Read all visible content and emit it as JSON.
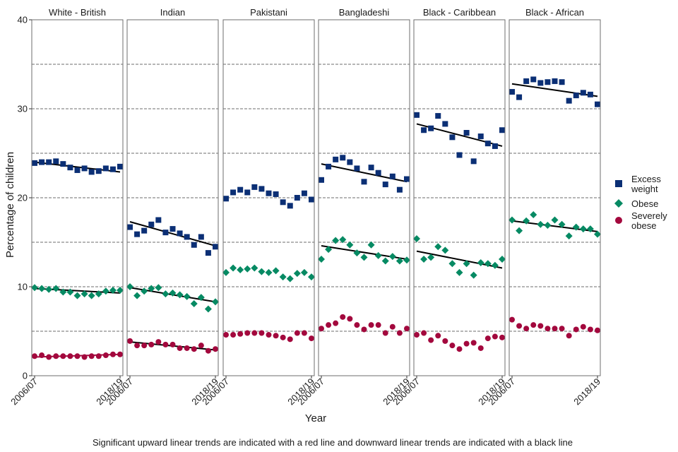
{
  "chart_data": {
    "type": "scatter",
    "xlabel": "Year",
    "ylabel": "Percentage of children",
    "caption": "Significant upward linear trends are indicated with a red line and downward linear trends are indicated with a black line",
    "x": [
      "2006/07",
      "2007/08",
      "2008/09",
      "2009/10",
      "2010/11",
      "2011/12",
      "2012/13",
      "2013/14",
      "2014/15",
      "2015/16",
      "2016/17",
      "2017/18",
      "2018/19"
    ],
    "x_tick_labels": [
      "2006/07",
      "2018/19"
    ],
    "ylim": [
      0,
      40
    ],
    "y_ticks": [
      0,
      10,
      20,
      30,
      40
    ],
    "grid": "horizontal dashed",
    "legend_position": "right",
    "legend": [
      {
        "key": "excess",
        "line1": "Excess",
        "line2": "weight",
        "color": "#0b2f75",
        "shape": "square"
      },
      {
        "key": "obese",
        "line1": "Obese",
        "line2": "",
        "color": "#068a63",
        "shape": "diamond"
      },
      {
        "key": "severe",
        "line1": "Severely",
        "line2": "obese",
        "color": "#a3083d",
        "shape": "circle"
      }
    ],
    "panels": [
      {
        "name": "White - British",
        "excess": [
          23.9,
          24.0,
          24.0,
          24.1,
          23.8,
          23.4,
          23.1,
          23.3,
          22.9,
          23.0,
          23.3,
          23.2,
          23.5
        ],
        "obese": [
          9.9,
          9.8,
          9.7,
          9.8,
          9.4,
          9.4,
          9.0,
          9.2,
          9.0,
          9.2,
          9.5,
          9.6,
          9.6
        ],
        "severe": [
          2.2,
          2.3,
          2.1,
          2.2,
          2.2,
          2.2,
          2.2,
          2.1,
          2.2,
          2.2,
          2.3,
          2.4,
          2.4
        ],
        "trends": [
          {
            "series": "excess",
            "start": 24.0,
            "end": 22.9,
            "color": "#000000"
          },
          {
            "series": "obese",
            "start": 9.8,
            "end": 9.3,
            "color": "#000000"
          },
          {
            "series": "severe",
            "start": 2.1,
            "end": 2.4,
            "color": "#a3083d"
          }
        ]
      },
      {
        "name": "Indian",
        "excess": [
          16.7,
          15.9,
          16.3,
          17.0,
          17.5,
          16.1,
          16.5,
          16.0,
          15.6,
          14.7,
          15.6,
          13.8,
          14.5
        ],
        "obese": [
          10.0,
          9.0,
          9.5,
          9.8,
          9.9,
          9.2,
          9.3,
          9.1,
          8.9,
          8.1,
          8.8,
          7.5,
          8.3
        ],
        "severe": [
          3.9,
          3.4,
          3.4,
          3.5,
          3.8,
          3.5,
          3.5,
          3.1,
          3.1,
          3.0,
          3.4,
          2.8,
          3.0
        ],
        "trends": [
          {
            "series": "excess",
            "start": 17.3,
            "end": 14.6,
            "color": "#000000"
          },
          {
            "series": "obese",
            "start": 9.9,
            "end": 8.3,
            "color": "#000000"
          },
          {
            "series": "severe",
            "start": 3.8,
            "end": 2.9,
            "color": "#000000"
          }
        ]
      },
      {
        "name": "Pakistani",
        "excess": [
          19.9,
          20.6,
          20.9,
          20.6,
          21.2,
          21.0,
          20.5,
          20.4,
          19.5,
          19.1,
          20.0,
          20.5,
          19.8
        ],
        "obese": [
          11.6,
          12.1,
          11.9,
          12.0,
          12.1,
          11.7,
          11.6,
          11.8,
          11.1,
          10.9,
          11.5,
          11.6,
          11.1
        ],
        "severe": [
          4.6,
          4.6,
          4.7,
          4.8,
          4.8,
          4.8,
          4.6,
          4.5,
          4.3,
          4.1,
          4.8,
          4.8,
          4.2
        ],
        "trends": []
      },
      {
        "name": "Bangladeshi",
        "excess": [
          22.0,
          23.5,
          24.3,
          24.5,
          24.0,
          23.3,
          21.8,
          23.4,
          22.8,
          21.5,
          22.4,
          20.9,
          22.1
        ],
        "obese": [
          13.1,
          14.2,
          15.2,
          15.3,
          14.7,
          13.8,
          13.3,
          14.7,
          13.5,
          12.9,
          13.4,
          12.9,
          13.0
        ],
        "severe": [
          5.3,
          5.7,
          5.9,
          6.6,
          6.4,
          5.7,
          5.2,
          5.7,
          5.7,
          4.8,
          5.5,
          4.8,
          5.3
        ],
        "trends": [
          {
            "series": "excess",
            "start": 23.8,
            "end": 21.8,
            "color": "#000000"
          },
          {
            "series": "obese",
            "start": 14.6,
            "end": 13.1,
            "color": "#000000"
          }
        ]
      },
      {
        "name": "Black - Caribbean",
        "excess": [
          29.3,
          27.6,
          27.8,
          29.2,
          28.3,
          26.8,
          24.8,
          27.3,
          24.1,
          26.9,
          26.1,
          25.8,
          27.6
        ],
        "obese": [
          15.4,
          13.1,
          13.3,
          14.5,
          14.1,
          12.6,
          11.6,
          12.6,
          11.3,
          12.7,
          12.6,
          12.4,
          13.1
        ],
        "severe": [
          4.6,
          4.8,
          4.0,
          4.5,
          3.9,
          3.4,
          3.0,
          3.6,
          3.7,
          3.1,
          4.2,
          4.4,
          4.3
        ],
        "trends": [
          {
            "series": "excess",
            "start": 28.3,
            "end": 25.8,
            "color": "#000000"
          },
          {
            "series": "obese",
            "start": 14.0,
            "end": 12.1,
            "color": "#000000"
          }
        ]
      },
      {
        "name": "Black - African",
        "excess": [
          31.9,
          31.3,
          33.1,
          33.3,
          32.9,
          33.0,
          33.1,
          33.0,
          30.9,
          31.5,
          31.8,
          31.6,
          30.5
        ],
        "obese": [
          17.5,
          16.3,
          17.4,
          18.1,
          17.0,
          16.9,
          17.5,
          17.0,
          15.7,
          16.7,
          16.5,
          16.5,
          15.9
        ],
        "severe": [
          6.3,
          5.6,
          5.3,
          5.7,
          5.6,
          5.3,
          5.3,
          5.3,
          4.5,
          5.2,
          5.5,
          5.2,
          5.1
        ],
        "trends": [
          {
            "series": "excess",
            "start": 32.8,
            "end": 31.4,
            "color": "#000000"
          },
          {
            "series": "obese",
            "start": 17.4,
            "end": 16.2,
            "color": "#000000"
          }
        ]
      }
    ]
  }
}
